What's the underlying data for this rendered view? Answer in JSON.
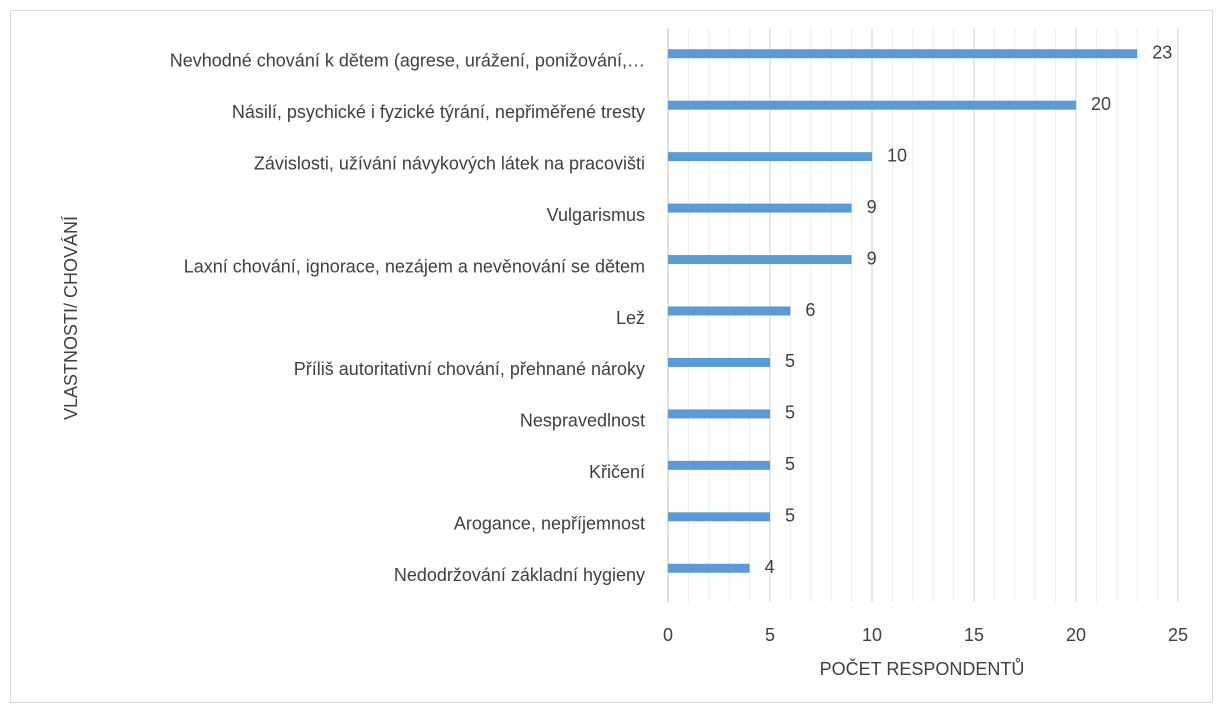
{
  "chart_data": {
    "type": "bar",
    "orientation": "horizontal",
    "categories": [
      "Nevhodné chování k dětem (agrese, urážení, ponižování,…",
      "Násilí, psychické i fyzické týrání, nepřiměřené tresty",
      "Závislosti, užívání návykových látek na pracovišti",
      "Vulgarismus",
      "Laxní chování, ignorace, nezájem a nevěnování se dětem",
      "Lež",
      "Příliš autoritativní chování, přehnané nároky",
      "Nespravedlnost",
      "Křičení",
      "Arogance, nepříjemnost",
      "Nedodržování základní hygieny"
    ],
    "values": [
      23,
      20,
      10,
      9,
      9,
      6,
      5,
      5,
      5,
      5,
      4
    ],
    "color": "#5b9bd5",
    "xlim": [
      0,
      25
    ],
    "xticks": [
      0,
      5,
      10,
      15,
      20,
      25
    ],
    "xlabel": "POČET RESPONDENTŮ",
    "ylabel": "VLASTNOSTI/ CHOVÁNÍ",
    "grid": true,
    "minor_grid": true
  }
}
